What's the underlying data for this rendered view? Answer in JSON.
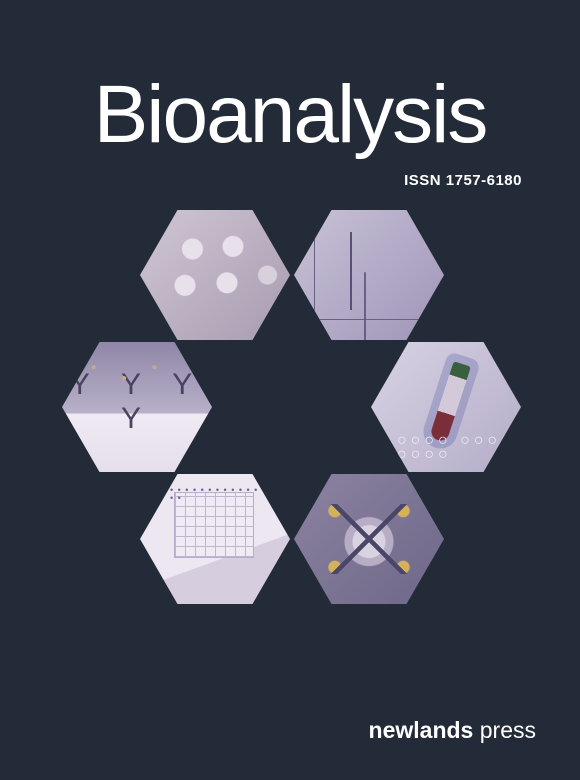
{
  "cover": {
    "background_color": "#242b38",
    "title": "Bioanalysis",
    "title_color": "#ffffff",
    "title_fontsize": 82,
    "title_fontweight": 100,
    "issn_label": "ISSN 1757-6180",
    "issn_fontsize": 15,
    "publisher_bold": "newlands",
    "publisher_light": " press",
    "publisher_fontsize": 23
  },
  "hexagons": {
    "layout": "ring-of-6",
    "hex_width": 150,
    "hex_height": 130,
    "gap": 4,
    "tiles": [
      {
        "pos": "top-left",
        "name": "microplate-wells",
        "palette": [
          "#cfc6d4",
          "#a89cb0",
          "#e8e0ea"
        ]
      },
      {
        "pos": "top-right",
        "name": "chromatogram",
        "palette": [
          "#c8c2d6",
          "#9f95b8",
          "#5a4f75"
        ]
      },
      {
        "pos": "mid-left",
        "name": "antibodies",
        "palette": [
          "#8f86a8",
          "#efeaf2",
          "#4a4260",
          "#c4a890"
        ]
      },
      {
        "pos": "mid-right",
        "name": "blood-vial-gloved-hand",
        "palette": [
          "#d8d3e4",
          "#3a5f3f",
          "#7a2e3a",
          "#3c4696"
        ]
      },
      {
        "pos": "bottom-left",
        "name": "microfluidic-chip",
        "palette": [
          "#ece7f0",
          "#d6cddf",
          "#bfb5cc"
        ]
      },
      {
        "pos": "bottom-right",
        "name": "mass-spec-source",
        "palette": [
          "#8b83a0",
          "#d9d2e0",
          "#d4b25a",
          "#4a4668"
        ]
      }
    ]
  }
}
